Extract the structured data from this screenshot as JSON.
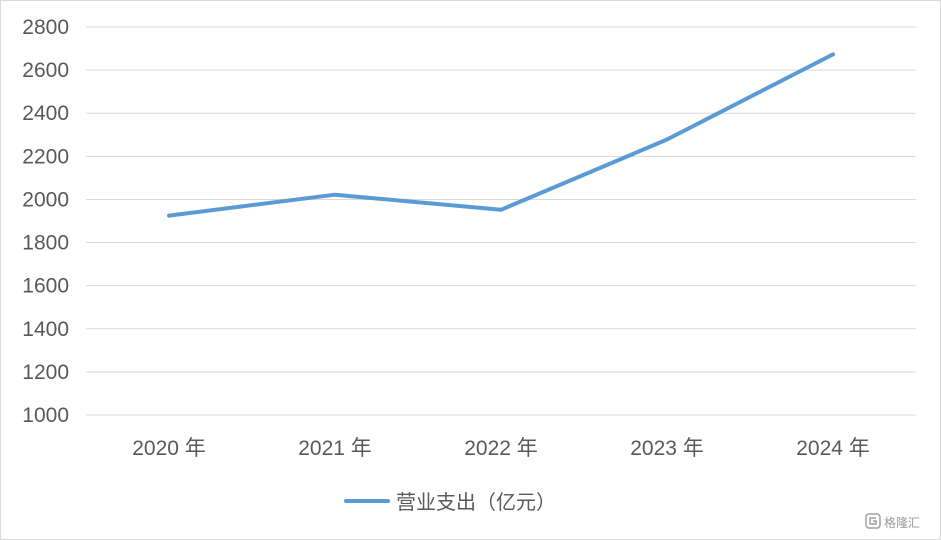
{
  "chart_data": {
    "type": "line",
    "categories": [
      "2020 年",
      "2021 年",
      "2022 年",
      "2023 年",
      "2024 年"
    ],
    "series": [
      {
        "name": "营业支出（亿元）",
        "values": [
          1925,
          2022,
          1952,
          2278,
          2673
        ],
        "color": "#5b9bd5"
      }
    ],
    "ylim": [
      1000,
      2800
    ],
    "yticks": [
      1000,
      1200,
      1400,
      1600,
      1800,
      2000,
      2200,
      2400,
      2600,
      2800
    ],
    "grid": true,
    "legend": "bottom-center"
  },
  "watermark": {
    "text": "格隆汇",
    "icon": "gelonghui-logo-icon"
  }
}
